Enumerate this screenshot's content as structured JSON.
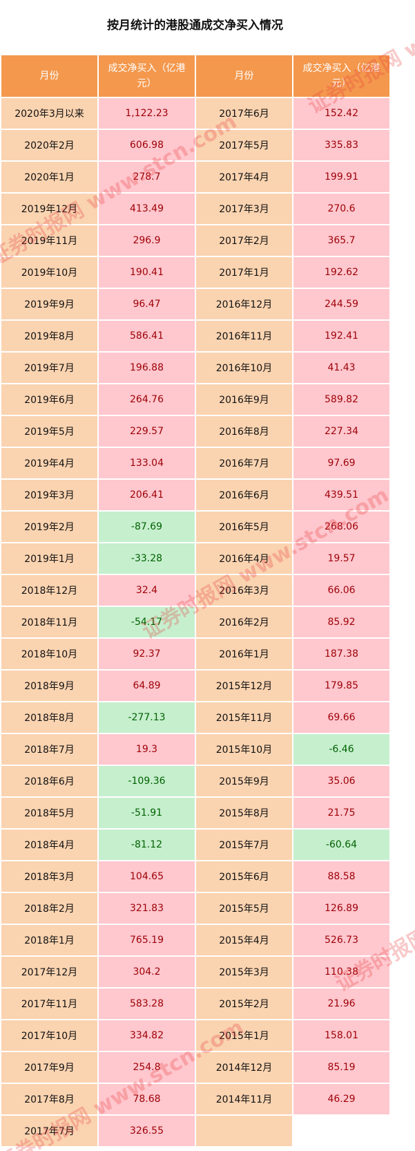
{
  "title": "按月统计的港股通成交净买入情况",
  "headers": [
    "月份",
    "成交净买入（亿港元）",
    "月份",
    "成交净买入（亿港元）"
  ],
  "watermark": "证券时报网 www.stcn.com",
  "colors": {
    "header": "#F4984D",
    "month_cell": "#FAD3B0",
    "positive_cell": "#FFC7CE",
    "positive_text": "#9C0006",
    "negative_cell": "#C6EFCE",
    "negative_text": "#006100"
  },
  "rows": [
    {
      "m1": "2020年3月以来",
      "v1": "1,122.23",
      "m2": "2017年6月",
      "v2": "152.42"
    },
    {
      "m1": "2020年2月",
      "v1": "606.98",
      "m2": "2017年5月",
      "v2": "335.83"
    },
    {
      "m1": "2020年1月",
      "v1": "278.7",
      "m2": "2017年4月",
      "v2": "199.91"
    },
    {
      "m1": "2019年12月",
      "v1": "413.49",
      "m2": "2017年3月",
      "v2": "270.6"
    },
    {
      "m1": "2019年11月",
      "v1": "296.9",
      "m2": "2017年2月",
      "v2": "365.7"
    },
    {
      "m1": "2019年10月",
      "v1": "190.41",
      "m2": "2017年1月",
      "v2": "192.62"
    },
    {
      "m1": "2019年9月",
      "v1": "96.47",
      "m2": "2016年12月",
      "v2": "244.59"
    },
    {
      "m1": "2019年8月",
      "v1": "586.41",
      "m2": "2016年11月",
      "v2": "192.41"
    },
    {
      "m1": "2019年7月",
      "v1": "196.88",
      "m2": "2016年10月",
      "v2": "41.43"
    },
    {
      "m1": "2019年6月",
      "v1": "264.76",
      "m2": "2016年9月",
      "v2": "589.82"
    },
    {
      "m1": "2019年5月",
      "v1": "229.57",
      "m2": "2016年8月",
      "v2": "227.34"
    },
    {
      "m1": "2019年4月",
      "v1": "133.04",
      "m2": "2016年7月",
      "v2": "97.69"
    },
    {
      "m1": "2019年3月",
      "v1": "206.41",
      "m2": "2016年6月",
      "v2": "439.51"
    },
    {
      "m1": "2019年2月",
      "v1": "-87.69",
      "m2": "2016年5月",
      "v2": "268.06"
    },
    {
      "m1": "2019年1月",
      "v1": "-33.28",
      "m2": "2016年4月",
      "v2": "19.57"
    },
    {
      "m1": "2018年12月",
      "v1": "32.4",
      "m2": "2016年3月",
      "v2": "66.06"
    },
    {
      "m1": "2018年11月",
      "v1": "-54.17",
      "m2": "2016年2月",
      "v2": "85.92"
    },
    {
      "m1": "2018年10月",
      "v1": "92.37",
      "m2": "2016年1月",
      "v2": "187.38"
    },
    {
      "m1": "2018年9月",
      "v1": "64.89",
      "m2": "2015年12月",
      "v2": "179.85"
    },
    {
      "m1": "2018年8月",
      "v1": "-277.13",
      "m2": "2015年11月",
      "v2": "69.66"
    },
    {
      "m1": "2018年7月",
      "v1": "19.3",
      "m2": "2015年10月",
      "v2": "-6.46"
    },
    {
      "m1": "2018年6月",
      "v1": "-109.36",
      "m2": "2015年9月",
      "v2": "35.06"
    },
    {
      "m1": "2018年5月",
      "v1": "-51.91",
      "m2": "2015年8月",
      "v2": "21.75"
    },
    {
      "m1": "2018年4月",
      "v1": "-81.12",
      "m2": "2015年7月",
      "v2": "-60.64"
    },
    {
      "m1": "2018年3月",
      "v1": "104.65",
      "m2": "2015年6月",
      "v2": "88.58"
    },
    {
      "m1": "2018年2月",
      "v1": "321.83",
      "m2": "2015年5月",
      "v2": "126.89"
    },
    {
      "m1": "2018年1月",
      "v1": "765.19",
      "m2": "2015年4月",
      "v2": "526.73"
    },
    {
      "m1": "2017年12月",
      "v1": "304.2",
      "m2": "2015年3月",
      "v2": "110.38"
    },
    {
      "m1": "2017年11月",
      "v1": "583.28",
      "m2": "2015年2月",
      "v2": "21.96"
    },
    {
      "m1": "2017年10月",
      "v1": "334.82",
      "m2": "2015年1月",
      "v2": "158.01"
    },
    {
      "m1": "2017年9月",
      "v1": "254.8",
      "m2": "2014年12月",
      "v2": "85.19"
    },
    {
      "m1": "2017年8月",
      "v1": "78.68",
      "m2": "2014年11月",
      "v2": "46.29"
    },
    {
      "m1": "2017年7月",
      "v1": "326.55",
      "m2": "",
      "v2": null
    }
  ]
}
